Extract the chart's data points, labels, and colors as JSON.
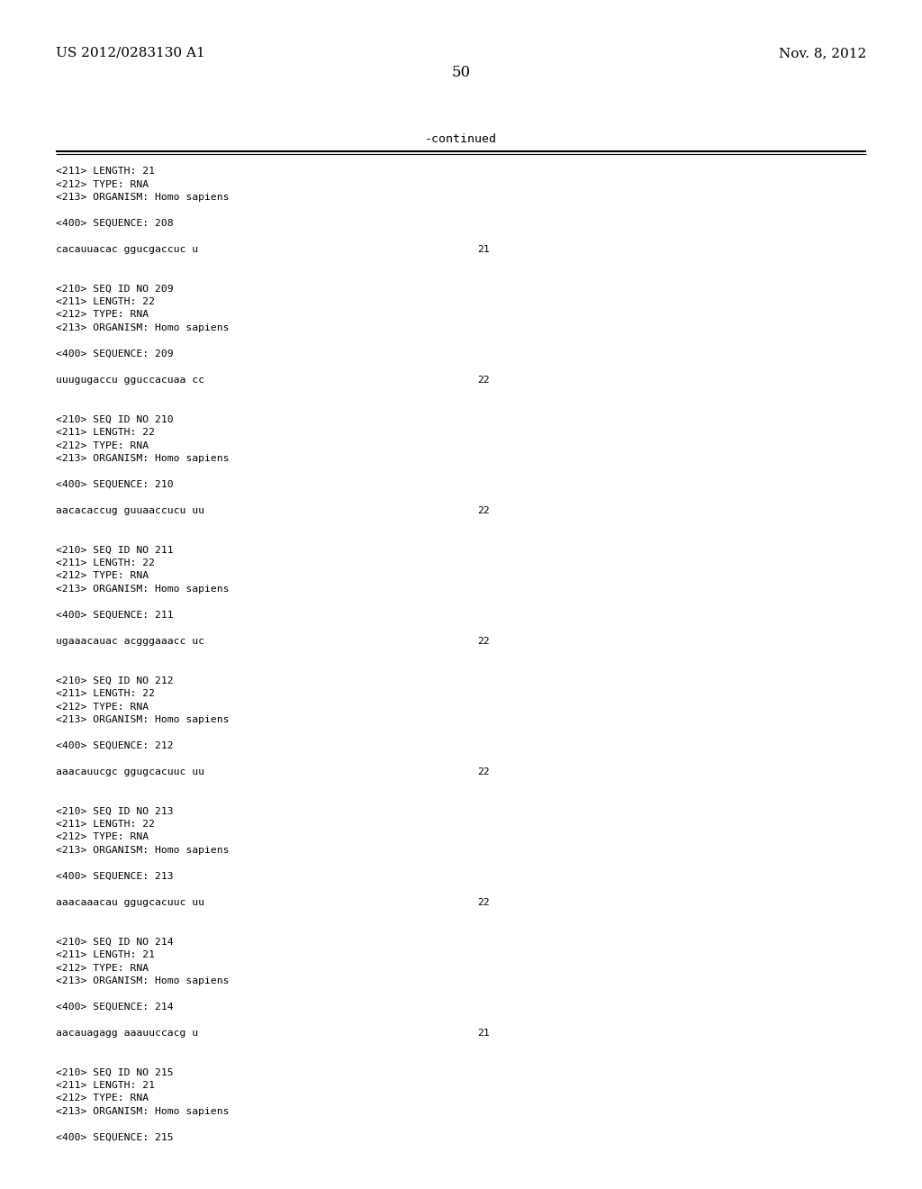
{
  "header_left": "US 2012/0283130 A1",
  "header_right": "Nov. 8, 2012",
  "page_number": "50",
  "continued_label": "-continued",
  "background_color": "#ffffff",
  "text_color": "#000000",
  "content_lines": [
    {
      "text": "<211> LENGTH: 21",
      "type": "meta"
    },
    {
      "text": "<212> TYPE: RNA",
      "type": "meta"
    },
    {
      "text": "<213> ORGANISM: Homo sapiens",
      "type": "meta"
    },
    {
      "text": "",
      "type": "blank"
    },
    {
      "text": "<400> SEQUENCE: 208",
      "type": "meta"
    },
    {
      "text": "",
      "type": "blank"
    },
    {
      "text": "cacauuacac ggucgaccuc u",
      "type": "seq",
      "num": "21"
    },
    {
      "text": "",
      "type": "blank"
    },
    {
      "text": "",
      "type": "blank"
    },
    {
      "text": "<210> SEQ ID NO 209",
      "type": "meta"
    },
    {
      "text": "<211> LENGTH: 22",
      "type": "meta"
    },
    {
      "text": "<212> TYPE: RNA",
      "type": "meta"
    },
    {
      "text": "<213> ORGANISM: Homo sapiens",
      "type": "meta"
    },
    {
      "text": "",
      "type": "blank"
    },
    {
      "text": "<400> SEQUENCE: 209",
      "type": "meta"
    },
    {
      "text": "",
      "type": "blank"
    },
    {
      "text": "uuugugaccu gguccacuaa cc",
      "type": "seq",
      "num": "22"
    },
    {
      "text": "",
      "type": "blank"
    },
    {
      "text": "",
      "type": "blank"
    },
    {
      "text": "<210> SEQ ID NO 210",
      "type": "meta"
    },
    {
      "text": "<211> LENGTH: 22",
      "type": "meta"
    },
    {
      "text": "<212> TYPE: RNA",
      "type": "meta"
    },
    {
      "text": "<213> ORGANISM: Homo sapiens",
      "type": "meta"
    },
    {
      "text": "",
      "type": "blank"
    },
    {
      "text": "<400> SEQUENCE: 210",
      "type": "meta"
    },
    {
      "text": "",
      "type": "blank"
    },
    {
      "text": "aacacaccug guuaaccucu uu",
      "type": "seq",
      "num": "22"
    },
    {
      "text": "",
      "type": "blank"
    },
    {
      "text": "",
      "type": "blank"
    },
    {
      "text": "<210> SEQ ID NO 211",
      "type": "meta"
    },
    {
      "text": "<211> LENGTH: 22",
      "type": "meta"
    },
    {
      "text": "<212> TYPE: RNA",
      "type": "meta"
    },
    {
      "text": "<213> ORGANISM: Homo sapiens",
      "type": "meta"
    },
    {
      "text": "",
      "type": "blank"
    },
    {
      "text": "<400> SEQUENCE: 211",
      "type": "meta"
    },
    {
      "text": "",
      "type": "blank"
    },
    {
      "text": "ugaaacauac acgggaaacc uc",
      "type": "seq",
      "num": "22"
    },
    {
      "text": "",
      "type": "blank"
    },
    {
      "text": "",
      "type": "blank"
    },
    {
      "text": "<210> SEQ ID NO 212",
      "type": "meta"
    },
    {
      "text": "<211> LENGTH: 22",
      "type": "meta"
    },
    {
      "text": "<212> TYPE: RNA",
      "type": "meta"
    },
    {
      "text": "<213> ORGANISM: Homo sapiens",
      "type": "meta"
    },
    {
      "text": "",
      "type": "blank"
    },
    {
      "text": "<400> SEQUENCE: 212",
      "type": "meta"
    },
    {
      "text": "",
      "type": "blank"
    },
    {
      "text": "aaacauucgc ggugcacuuc uu",
      "type": "seq",
      "num": "22"
    },
    {
      "text": "",
      "type": "blank"
    },
    {
      "text": "",
      "type": "blank"
    },
    {
      "text": "<210> SEQ ID NO 213",
      "type": "meta"
    },
    {
      "text": "<211> LENGTH: 22",
      "type": "meta"
    },
    {
      "text": "<212> TYPE: RNA",
      "type": "meta"
    },
    {
      "text": "<213> ORGANISM: Homo sapiens",
      "type": "meta"
    },
    {
      "text": "",
      "type": "blank"
    },
    {
      "text": "<400> SEQUENCE: 213",
      "type": "meta"
    },
    {
      "text": "",
      "type": "blank"
    },
    {
      "text": "aaacaaacau ggugcacuuc uu",
      "type": "seq",
      "num": "22"
    },
    {
      "text": "",
      "type": "blank"
    },
    {
      "text": "",
      "type": "blank"
    },
    {
      "text": "<210> SEQ ID NO 214",
      "type": "meta"
    },
    {
      "text": "<211> LENGTH: 21",
      "type": "meta"
    },
    {
      "text": "<212> TYPE: RNA",
      "type": "meta"
    },
    {
      "text": "<213> ORGANISM: Homo sapiens",
      "type": "meta"
    },
    {
      "text": "",
      "type": "blank"
    },
    {
      "text": "<400> SEQUENCE: 214",
      "type": "meta"
    },
    {
      "text": "",
      "type": "blank"
    },
    {
      "text": "aacauagagg aaauuccacg u",
      "type": "seq",
      "num": "21"
    },
    {
      "text": "",
      "type": "blank"
    },
    {
      "text": "",
      "type": "blank"
    },
    {
      "text": "<210> SEQ ID NO 215",
      "type": "meta"
    },
    {
      "text": "<211> LENGTH: 21",
      "type": "meta"
    },
    {
      "text": "<212> TYPE: RNA",
      "type": "meta"
    },
    {
      "text": "<213> ORGANISM: Homo sapiens",
      "type": "meta"
    },
    {
      "text": "",
      "type": "blank"
    },
    {
      "text": "<400> SEQUENCE: 215",
      "type": "meta"
    }
  ]
}
